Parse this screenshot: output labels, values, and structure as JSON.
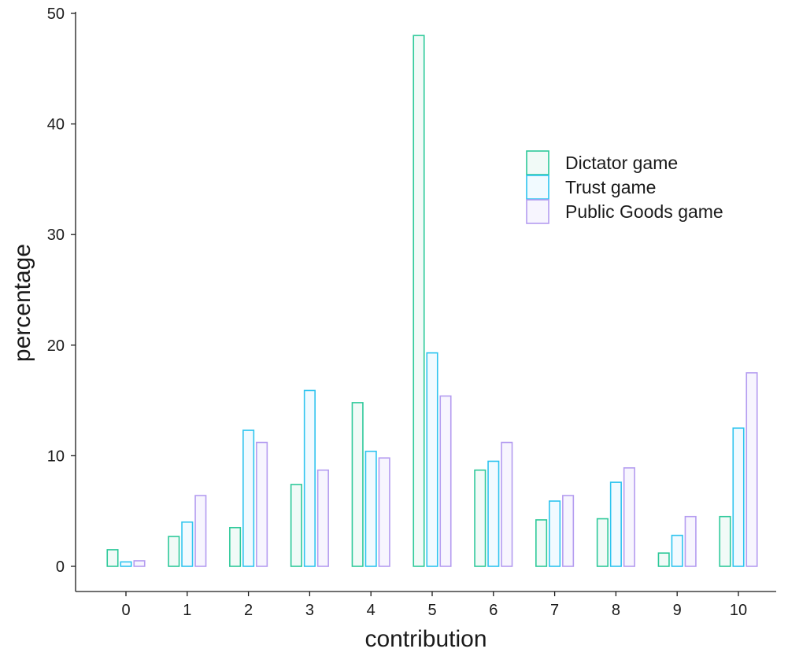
{
  "chart_data": {
    "type": "bar",
    "xlabel": "contribution",
    "ylabel": "percentage",
    "ylim": [
      0,
      50
    ],
    "yticks": [
      0,
      10,
      20,
      30,
      40,
      50
    ],
    "categories": [
      "0",
      "1",
      "2",
      "3",
      "4",
      "5",
      "6",
      "7",
      "8",
      "9",
      "10"
    ],
    "series": [
      {
        "name": "Dictator game",
        "color": "#2ec99a",
        "values": [
          1.5,
          2.7,
          3.5,
          7.4,
          14.8,
          48.0,
          8.7,
          4.2,
          4.3,
          1.2,
          4.5
        ]
      },
      {
        "name": "Trust game",
        "color": "#2ec4ef",
        "values": [
          0.4,
          4.0,
          12.3,
          15.9,
          10.4,
          19.3,
          9.5,
          5.9,
          7.6,
          2.8,
          12.5
        ]
      },
      {
        "name": "Public Goods game",
        "color": "#b49cf0",
        "values": [
          0.5,
          6.4,
          11.2,
          8.7,
          9.8,
          15.4,
          11.2,
          6.4,
          8.9,
          4.5,
          17.5
        ]
      }
    ],
    "legend_position": "top-right",
    "grid": false
  }
}
